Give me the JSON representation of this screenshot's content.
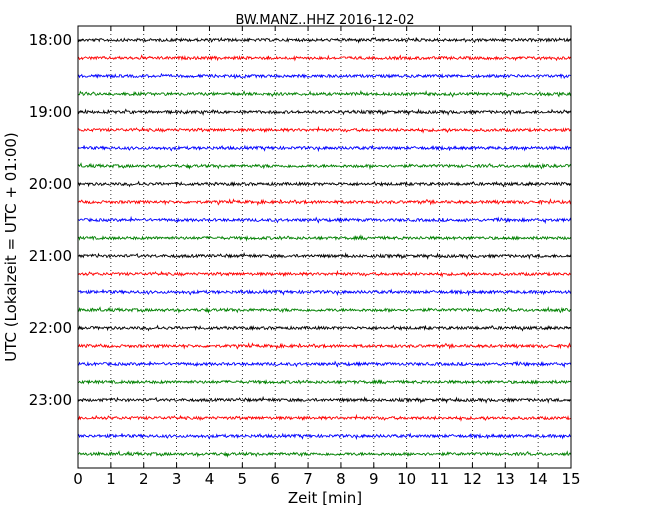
{
  "chart_data": {
    "type": "line",
    "title": "BW.MANZ..HHZ 2016-12-02",
    "xlabel": "Zeit  [min]",
    "ylabel": "UTC (Lokalzeit = UTC + 01:00)",
    "xlim": [
      0,
      15
    ],
    "x_ticks": [
      0,
      1,
      2,
      3,
      4,
      5,
      6,
      7,
      8,
      9,
      10,
      11,
      12,
      13,
      14,
      15
    ],
    "x_tick_labels": [
      "0",
      "1",
      "2",
      "3",
      "4",
      "5",
      "6",
      "7",
      "8",
      "9",
      "10",
      "11",
      "12",
      "13",
      "14",
      "15"
    ],
    "grid": "vertical dotted",
    "y_tick_labels": [
      "18:00",
      "19:00",
      "20:00",
      "21:00",
      "22:00",
      "23:00"
    ],
    "trace_start_times": [
      "18:00",
      "18:15",
      "18:30",
      "18:45",
      "19:00",
      "19:15",
      "19:30",
      "19:45",
      "20:00",
      "20:15",
      "20:30",
      "20:45",
      "21:00",
      "21:15",
      "21:30",
      "21:45",
      "22:00",
      "22:15",
      "22:30",
      "22:45",
      "23:00",
      "23:15",
      "23:30",
      "23:45"
    ],
    "trace_minutes": 15,
    "color_cycle": [
      "#000000",
      "#ff0000",
      "#0000ff",
      "#008000"
    ],
    "series": [
      {
        "start": "18:00",
        "color": "#000000"
      },
      {
        "start": "18:15",
        "color": "#ff0000"
      },
      {
        "start": "18:30",
        "color": "#0000ff"
      },
      {
        "start": "18:45",
        "color": "#008000"
      },
      {
        "start": "19:00",
        "color": "#000000"
      },
      {
        "start": "19:15",
        "color": "#ff0000"
      },
      {
        "start": "19:30",
        "color": "#0000ff"
      },
      {
        "start": "19:45",
        "color": "#008000"
      },
      {
        "start": "20:00",
        "color": "#000000"
      },
      {
        "start": "20:15",
        "color": "#ff0000"
      },
      {
        "start": "20:30",
        "color": "#0000ff"
      },
      {
        "start": "20:45",
        "color": "#008000"
      },
      {
        "start": "21:00",
        "color": "#000000"
      },
      {
        "start": "21:15",
        "color": "#ff0000"
      },
      {
        "start": "21:30",
        "color": "#0000ff"
      },
      {
        "start": "21:45",
        "color": "#008000"
      },
      {
        "start": "22:00",
        "color": "#000000"
      },
      {
        "start": "22:15",
        "color": "#ff0000"
      },
      {
        "start": "22:30",
        "color": "#0000ff"
      },
      {
        "start": "22:45",
        "color": "#008000"
      },
      {
        "start": "23:00",
        "color": "#000000"
      },
      {
        "start": "23:15",
        "color": "#ff0000"
      },
      {
        "start": "23:30",
        "color": "#0000ff"
      },
      {
        "start": "23:45",
        "color": "#008000"
      }
    ]
  }
}
